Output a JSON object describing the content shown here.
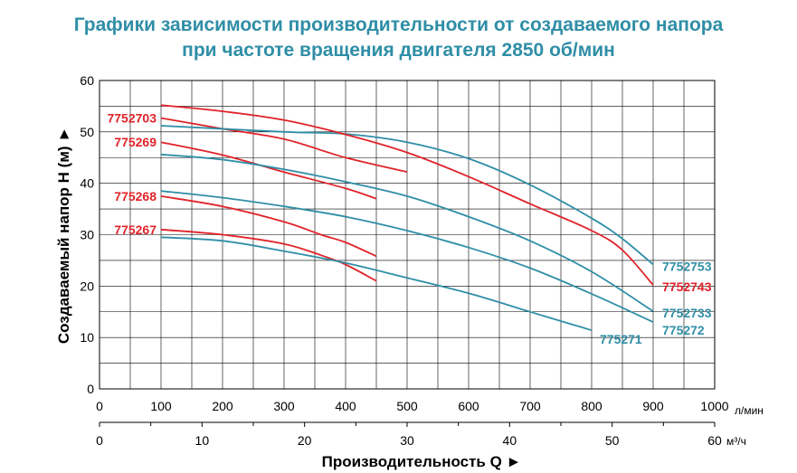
{
  "title_line1": "Графики зависимости производительности от создаваемого напора",
  "title_line2": "при частоте вращения двигателя 2850 об/мин",
  "colors": {
    "title": "#2f8ea6",
    "red": "#e0232a",
    "teal": "#2f8ea6",
    "grid": "#000000"
  },
  "chart_data": {
    "type": "line",
    "ylabel": "Создаваемый напор Н (м) ►",
    "xlabel": "Производительность Q ►",
    "ylim": [
      0,
      60
    ],
    "xlim": [
      0,
      1000
    ],
    "yticks": [
      "0",
      "10",
      "20",
      "30",
      "40",
      "50",
      "60"
    ],
    "xticks": [
      "0",
      "100",
      "200",
      "300",
      "400",
      "500",
      "600",
      "700",
      "800",
      "900",
      "1000"
    ],
    "xunit": "л/мин",
    "x2ticks": [
      "0",
      "10",
      "20",
      "30",
      "40",
      "50",
      "60"
    ],
    "x2unit": "м³/ч",
    "grid": true,
    "series": [
      {
        "name": "7752703",
        "color": "red",
        "label_side": "left",
        "points": [
          [
            100,
            52.7
          ],
          [
            200,
            50.6
          ],
          [
            300,
            48.6
          ],
          [
            400,
            45
          ],
          [
            500,
            42.2
          ]
        ]
      },
      {
        "name": "775269",
        "color": "red",
        "label_side": "left",
        "points": [
          [
            100,
            48
          ],
          [
            200,
            45.5
          ],
          [
            300,
            42.2
          ],
          [
            400,
            39
          ],
          [
            450,
            37
          ]
        ]
      },
      {
        "name": "775268",
        "color": "red",
        "label_side": "left",
        "points": [
          [
            100,
            37.5
          ],
          [
            200,
            35.5
          ],
          [
            300,
            32.5
          ],
          [
            360,
            30
          ],
          [
            400,
            28.5
          ],
          [
            450,
            25.8
          ]
        ]
      },
      {
        "name": "775267",
        "color": "red",
        "label_side": "left",
        "points": [
          [
            100,
            31
          ],
          [
            200,
            30
          ],
          [
            300,
            28.2
          ],
          [
            360,
            26
          ],
          [
            400,
            24.2
          ],
          [
            450,
            21
          ]
        ]
      },
      {
        "name": "7752753",
        "color": "teal",
        "label_side": "right",
        "points": [
          [
            100,
            51.2
          ],
          [
            300,
            50
          ],
          [
            400,
            49.6
          ],
          [
            500,
            48
          ],
          [
            600,
            44.8
          ],
          [
            700,
            39.7
          ],
          [
            800,
            33.2
          ],
          [
            850,
            29.2
          ],
          [
            900,
            24.2
          ]
        ]
      },
      {
        "name": "7752743",
        "color": "red",
        "label_side": "right",
        "points": [
          [
            100,
            55.2
          ],
          [
            200,
            54
          ],
          [
            300,
            52.3
          ],
          [
            400,
            49.5
          ],
          [
            500,
            46
          ],
          [
            600,
            41.3
          ],
          [
            700,
            36
          ],
          [
            800,
            30.8
          ],
          [
            850,
            27
          ],
          [
            900,
            20.2
          ]
        ]
      },
      {
        "name": "7752733",
        "color": "teal",
        "label_side": "right",
        "points": [
          [
            100,
            45.6
          ],
          [
            200,
            44.6
          ],
          [
            300,
            42.7
          ],
          [
            400,
            40.3
          ],
          [
            500,
            37.5
          ],
          [
            600,
            33.5
          ],
          [
            700,
            28.8
          ],
          [
            800,
            22.8
          ],
          [
            900,
            15.1
          ]
        ]
      },
      {
        "name": "775272",
        "color": "teal",
        "label_side": "right",
        "points": [
          [
            100,
            38.5
          ],
          [
            200,
            37.2
          ],
          [
            300,
            35.5
          ],
          [
            400,
            33.5
          ],
          [
            500,
            30.8
          ],
          [
            600,
            27.5
          ],
          [
            700,
            23.5
          ],
          [
            800,
            18.5
          ],
          [
            900,
            13
          ]
        ]
      },
      {
        "name": "775271",
        "color": "teal",
        "label_side": "below",
        "points": [
          [
            100,
            29.5
          ],
          [
            200,
            28.8
          ],
          [
            300,
            26.8
          ],
          [
            400,
            24.5
          ],
          [
            500,
            21.6
          ],
          [
            600,
            18.6
          ],
          [
            700,
            15
          ],
          [
            800,
            11.4
          ]
        ]
      }
    ]
  }
}
